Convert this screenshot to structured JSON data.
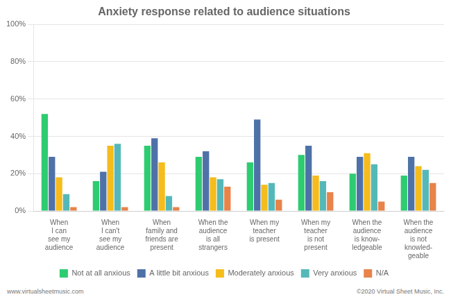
{
  "chart_data": {
    "type": "bar",
    "title": "Anxiety response related to audience situations",
    "categories": [
      "When\nI can\nsee my\naudience",
      "When\nI can't\nsee my\naudience",
      "When\nfamily and\nfriends are\npresent",
      "When the\naudience\nis all\nstrangers",
      "When my\nteacher\nis present",
      "When my\nteacher\nis not\npresent",
      "When the\naudience\nis know-\nledgeable",
      "When the\naudience\nis not\nknowled-\ngeable"
    ],
    "series": [
      {
        "name": "Not at all anxious",
        "color": "#2ecc71",
        "values": [
          52,
          16,
          35,
          29,
          26,
          30,
          20,
          19
        ]
      },
      {
        "name": "A little bit anxious",
        "color": "#4e72a8",
        "values": [
          29,
          21,
          39,
          32,
          49,
          35,
          29,
          29
        ]
      },
      {
        "name": "Moderately anxious",
        "color": "#f5bc1c",
        "values": [
          18,
          35,
          26,
          18,
          14,
          19,
          31,
          24
        ]
      },
      {
        "name": "Very anxious",
        "color": "#55b8b8",
        "values": [
          9,
          36,
          8,
          17,
          15,
          16,
          25,
          22
        ]
      },
      {
        "name": "N/A",
        "color": "#e8834a",
        "values": [
          2,
          2,
          2,
          13,
          6,
          10,
          5,
          15
        ]
      }
    ],
    "ylim": [
      0,
      100
    ],
    "yticks": [
      {
        "value": 0,
        "label": "0%"
      },
      {
        "value": 20,
        "label": "20%"
      },
      {
        "value": 40,
        "label": "40%"
      },
      {
        "value": 60,
        "label": "60%"
      },
      {
        "value": 80,
        "label": "80%"
      },
      {
        "value": 100,
        "label": "100%"
      }
    ],
    "grid": true,
    "legend": "bottom",
    "annotations": [
      "www.virtualsheetmusic.com",
      "©2020 Virtual Sheet Music, Inc."
    ]
  }
}
